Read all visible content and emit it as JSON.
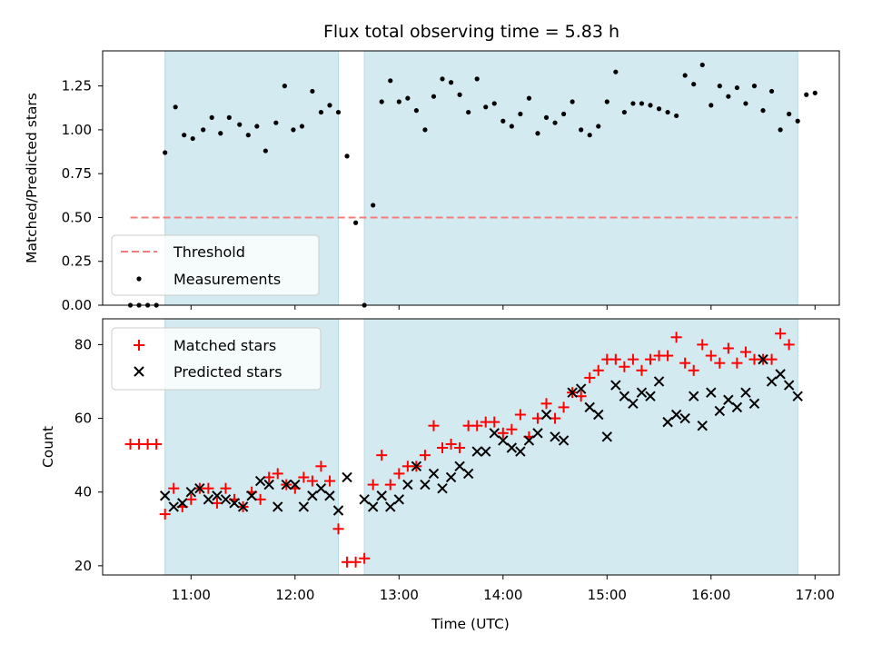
{
  "chart_data": [
    {
      "type": "scatter",
      "title": "Flux total observing time = 5.83 h",
      "xlabel": "",
      "ylabel": "Matched/Predicted stars",
      "xlim": [
        "10:09",
        "17:14"
      ],
      "ylim": [
        0,
        1.45
      ],
      "yticks": [
        "0.00",
        "0.25",
        "0.50",
        "0.75",
        "1.00",
        "1.25"
      ],
      "shaded_intervals": [
        [
          "10:45",
          "12:25"
        ],
        [
          "12:40",
          "16:50"
        ]
      ],
      "shade_color": "#d3eaf0",
      "legend": {
        "position": "lower-left",
        "entries": [
          "Threshold",
          "Measurements"
        ]
      },
      "threshold": {
        "name": "Threshold",
        "y": 0.5,
        "x_range": [
          "10:25",
          "16:50"
        ],
        "color": "#f47c7c",
        "style": "dashed"
      },
      "series": [
        {
          "name": "Measurements",
          "color": "#000000",
          "points": [
            [
              "10:25",
              0
            ],
            [
              "10:30",
              0
            ],
            [
              "10:35",
              0
            ],
            [
              "10:40",
              0
            ],
            [
              "10:45",
              0.87
            ],
            [
              "10:51",
              1.13
            ],
            [
              "10:56",
              0.97
            ],
            [
              "11:01",
              0.95
            ],
            [
              "11:07",
              1.0
            ],
            [
              "11:12",
              1.07
            ],
            [
              "11:17",
              0.98
            ],
            [
              "11:22",
              1.07
            ],
            [
              "11:28",
              1.03
            ],
            [
              "11:33",
              0.97
            ],
            [
              "11:38",
              1.02
            ],
            [
              "11:43",
              0.88
            ],
            [
              "11:49",
              1.04
            ],
            [
              "11:54",
              1.25
            ],
            [
              "11:59",
              1.0
            ],
            [
              "12:04",
              1.02
            ],
            [
              "12:10",
              1.22
            ],
            [
              "12:15",
              1.1
            ],
            [
              "12:20",
              1.14
            ],
            [
              "12:25",
              1.1
            ],
            [
              "12:30",
              0.85
            ],
            [
              "12:35",
              0.47
            ],
            [
              "12:40",
              0.0
            ],
            [
              "12:45",
              0.57
            ],
            [
              "12:50",
              1.16
            ],
            [
              "12:55",
              1.28
            ],
            [
              "13:00",
              1.16
            ],
            [
              "13:05",
              1.18
            ],
            [
              "13:10",
              1.11
            ],
            [
              "13:15",
              1.0
            ],
            [
              "13:20",
              1.19
            ],
            [
              "13:25",
              1.29
            ],
            [
              "13:30",
              1.27
            ],
            [
              "13:35",
              1.2
            ],
            [
              "13:40",
              1.1
            ],
            [
              "13:45",
              1.29
            ],
            [
              "13:50",
              1.13
            ],
            [
              "13:55",
              1.15
            ],
            [
              "14:00",
              1.05
            ],
            [
              "14:05",
              1.02
            ],
            [
              "14:10",
              1.09
            ],
            [
              "14:15",
              1.18
            ],
            [
              "14:20",
              0.98
            ],
            [
              "14:25",
              1.07
            ],
            [
              "14:30",
              1.04
            ],
            [
              "14:35",
              1.09
            ],
            [
              "14:40",
              1.16
            ],
            [
              "14:45",
              1.0
            ],
            [
              "14:50",
              0.97
            ],
            [
              "14:55",
              1.02
            ],
            [
              "15:00",
              1.16
            ],
            [
              "15:05",
              1.33
            ],
            [
              "15:10",
              1.1
            ],
            [
              "15:15",
              1.15
            ],
            [
              "15:20",
              1.15
            ],
            [
              "15:25",
              1.14
            ],
            [
              "15:30",
              1.12
            ],
            [
              "15:35",
              1.1
            ],
            [
              "15:40",
              1.08
            ],
            [
              "15:45",
              1.31
            ],
            [
              "15:50",
              1.26
            ],
            [
              "15:55",
              1.37
            ],
            [
              "16:00",
              1.14
            ],
            [
              "16:05",
              1.25
            ],
            [
              "16:10",
              1.19
            ],
            [
              "16:15",
              1.24
            ],
            [
              "16:20",
              1.15
            ],
            [
              "16:25",
              1.25
            ],
            [
              "16:30",
              1.11
            ],
            [
              "16:35",
              1.22
            ],
            [
              "16:40",
              1.0
            ],
            [
              "16:45",
              1.09
            ],
            [
              "16:50",
              1.05
            ],
            [
              "16:55",
              1.2
            ],
            [
              "17:00",
              1.21
            ]
          ]
        }
      ]
    },
    {
      "type": "scatter",
      "title": "",
      "xlabel": "Time (UTC)",
      "ylabel": "Count",
      "xlim": [
        "10:09",
        "17:14"
      ],
      "ylim": [
        17.5,
        87
      ],
      "xticks": [
        "11:00",
        "12:00",
        "13:00",
        "14:00",
        "15:00",
        "16:00",
        "17:00"
      ],
      "yticks": [
        "20",
        "40",
        "60",
        "80"
      ],
      "shaded_intervals": [
        [
          "10:45",
          "12:25"
        ],
        [
          "12:40",
          "16:50"
        ]
      ],
      "shade_color": "#d3eaf0",
      "legend": {
        "position": "upper-left",
        "entries": [
          "Matched stars",
          "Predicted stars"
        ]
      },
      "series": [
        {
          "name": "Matched stars",
          "marker": "plus",
          "color": "#ff0000",
          "points": [
            [
              "10:25",
              53
            ],
            [
              "10:30",
              53
            ],
            [
              "10:35",
              53
            ],
            [
              "10:40",
              53
            ],
            [
              "10:45",
              34
            ],
            [
              "10:50",
              41
            ],
            [
              "10:55",
              36
            ],
            [
              "11:00",
              38
            ],
            [
              "11:05",
              41
            ],
            [
              "11:10",
              41
            ],
            [
              "11:15",
              37
            ],
            [
              "11:20",
              41
            ],
            [
              "11:25",
              38
            ],
            [
              "11:30",
              36
            ],
            [
              "11:35",
              40
            ],
            [
              "11:40",
              38
            ],
            [
              "11:45",
              44
            ],
            [
              "11:50",
              45
            ],
            [
              "11:55",
              42
            ],
            [
              "12:00",
              41
            ],
            [
              "12:05",
              44
            ],
            [
              "12:10",
              43
            ],
            [
              "12:15",
              47
            ],
            [
              "12:20",
              43
            ],
            [
              "12:25",
              30
            ],
            [
              "12:30",
              21
            ],
            [
              "12:35",
              21
            ],
            [
              "12:40",
              22
            ],
            [
              "12:45",
              42
            ],
            [
              "12:50",
              50
            ],
            [
              "12:55",
              42
            ],
            [
              "13:00",
              45
            ],
            [
              "13:05",
              47
            ],
            [
              "13:10",
              47
            ],
            [
              "13:15",
              50
            ],
            [
              "13:20",
              58
            ],
            [
              "13:25",
              52
            ],
            [
              "13:30",
              53
            ],
            [
              "13:35",
              52
            ],
            [
              "13:40",
              58
            ],
            [
              "13:45",
              58
            ],
            [
              "13:50",
              59
            ],
            [
              "13:55",
              59
            ],
            [
              "14:00",
              56
            ],
            [
              "14:05",
              57
            ],
            [
              "14:10",
              61
            ],
            [
              "14:15",
              55
            ],
            [
              "14:20",
              60
            ],
            [
              "14:25",
              64
            ],
            [
              "14:30",
              60
            ],
            [
              "14:35",
              63
            ],
            [
              "14:40",
              67
            ],
            [
              "14:45",
              66
            ],
            [
              "14:50",
              71
            ],
            [
              "14:55",
              73
            ],
            [
              "15:00",
              76
            ],
            [
              "15:05",
              76
            ],
            [
              "15:10",
              74
            ],
            [
              "15:15",
              76
            ],
            [
              "15:20",
              73
            ],
            [
              "15:25",
              76
            ],
            [
              "15:30",
              77
            ],
            [
              "15:35",
              77
            ],
            [
              "15:40",
              82
            ],
            [
              "15:45",
              75
            ],
            [
              "15:50",
              73
            ],
            [
              "15:55",
              80
            ],
            [
              "16:00",
              77
            ],
            [
              "16:05",
              75
            ],
            [
              "16:10",
              79
            ],
            [
              "16:15",
              75
            ],
            [
              "16:20",
              78
            ],
            [
              "16:25",
              76
            ],
            [
              "16:30",
              76
            ],
            [
              "16:35",
              76
            ],
            [
              "16:40",
              83
            ],
            [
              "16:45",
              80
            ]
          ]
        },
        {
          "name": "Predicted stars",
          "marker": "x",
          "color": "#000000",
          "points": [
            [
              "10:45",
              39
            ],
            [
              "10:50",
              36
            ],
            [
              "10:55",
              37
            ],
            [
              "11:00",
              40
            ],
            [
              "11:05",
              41
            ],
            [
              "11:10",
              38
            ],
            [
              "11:15",
              39
            ],
            [
              "11:20",
              38
            ],
            [
              "11:25",
              37
            ],
            [
              "11:30",
              36
            ],
            [
              "11:35",
              39
            ],
            [
              "11:40",
              43
            ],
            [
              "11:45",
              42
            ],
            [
              "11:50",
              36
            ],
            [
              "11:55",
              42
            ],
            [
              "12:00",
              42
            ],
            [
              "12:05",
              36
            ],
            [
              "12:10",
              39
            ],
            [
              "12:15",
              41
            ],
            [
              "12:20",
              39
            ],
            [
              "12:25",
              35
            ],
            [
              "12:30",
              44
            ],
            [
              "12:40",
              38
            ],
            [
              "12:45",
              36
            ],
            [
              "12:50",
              39
            ],
            [
              "12:55",
              36
            ],
            [
              "13:00",
              38
            ],
            [
              "13:05",
              42
            ],
            [
              "13:10",
              47
            ],
            [
              "13:15",
              42
            ],
            [
              "13:20",
              45
            ],
            [
              "13:25",
              41
            ],
            [
              "13:30",
              44
            ],
            [
              "13:35",
              47
            ],
            [
              "13:40",
              45
            ],
            [
              "13:45",
              51
            ],
            [
              "13:50",
              51
            ],
            [
              "13:55",
              56
            ],
            [
              "14:00",
              54
            ],
            [
              "14:05",
              52
            ],
            [
              "14:10",
              51
            ],
            [
              "14:15",
              54
            ],
            [
              "14:20",
              56
            ],
            [
              "14:25",
              61
            ],
            [
              "14:30",
              55
            ],
            [
              "14:35",
              54
            ],
            [
              "14:40",
              67
            ],
            [
              "14:45",
              68
            ],
            [
              "14:50",
              63
            ],
            [
              "14:55",
              61
            ],
            [
              "15:00",
              55
            ],
            [
              "15:05",
              69
            ],
            [
              "15:10",
              66
            ],
            [
              "15:15",
              64
            ],
            [
              "15:20",
              67
            ],
            [
              "15:25",
              66
            ],
            [
              "15:30",
              70
            ],
            [
              "15:35",
              59
            ],
            [
              "15:40",
              61
            ],
            [
              "15:45",
              60
            ],
            [
              "15:50",
              66
            ],
            [
              "15:55",
              58
            ],
            [
              "16:00",
              67
            ],
            [
              "16:05",
              62
            ],
            [
              "16:10",
              65
            ],
            [
              "16:15",
              63
            ],
            [
              "16:20",
              67
            ],
            [
              "16:25",
              64
            ],
            [
              "16:30",
              76
            ],
            [
              "16:35",
              70
            ],
            [
              "16:40",
              72
            ],
            [
              "16:45",
              69
            ],
            [
              "16:50",
              66
            ]
          ]
        }
      ]
    }
  ]
}
